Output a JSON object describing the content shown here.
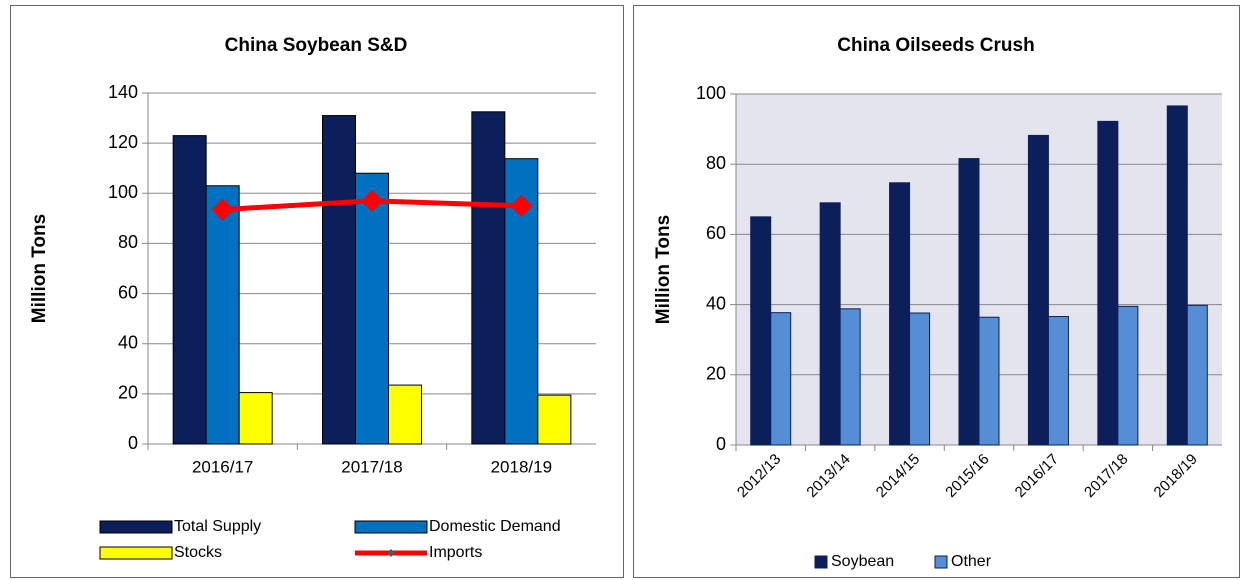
{
  "chart_data": [
    {
      "type": "bar",
      "title": "China Soybean S&D",
      "y_label": "Million Tons",
      "categories": [
        "2016/17",
        "2017/18",
        "2018/19"
      ],
      "series": [
        {
          "name": "Total Supply",
          "color": "#0c1f5b",
          "values": [
            123,
            131,
            132.5
          ]
        },
        {
          "name": "Domestic Demand",
          "color": "#0070c0",
          "values": [
            103,
            108,
            113.8
          ]
        },
        {
          "name": "Stocks",
          "color": "#ffff00",
          "values": [
            20.5,
            23.5,
            19.5
          ]
        },
        {
          "name": "Imports",
          "color": "#ff0000",
          "type": "line",
          "values": [
            93.5,
            97,
            95
          ]
        }
      ],
      "ylim": [
        0,
        140
      ],
      "yticks": [
        0,
        20,
        40,
        60,
        80,
        100,
        120,
        140
      ],
      "grid": true,
      "legend": "bottom"
    },
    {
      "type": "bar",
      "title": "China Oilseeds Crush",
      "y_label": "Million Tons",
      "categories": [
        "2012/13",
        "2013/14",
        "2014/15",
        "2015/16",
        "2016/17",
        "2017/18",
        "2018/19"
      ],
      "series": [
        {
          "name": "Soybean",
          "color": "#0c1f5b",
          "values": [
            65,
            69,
            74.7,
            81.6,
            88.2,
            92.2,
            96.6
          ]
        },
        {
          "name": "Other",
          "color": "#558ed5",
          "values": [
            37.7,
            38.8,
            37.6,
            36.4,
            36.6,
            39.5,
            39.8
          ]
        }
      ],
      "ylim": [
        0,
        100
      ],
      "yticks": [
        0,
        20,
        40,
        60,
        80,
        100
      ],
      "grid": true,
      "legend": "bottom"
    }
  ]
}
